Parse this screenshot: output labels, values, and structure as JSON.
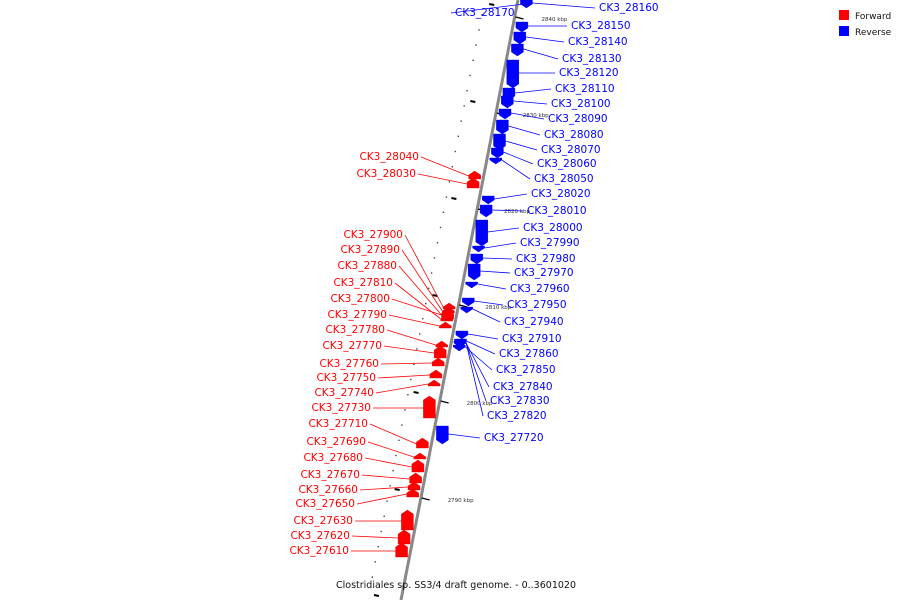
{
  "caption": "Clostridiales sp. SS3/4 draft genome. - 0..3601020",
  "legend": [
    {
      "label": "Forward",
      "color": "#ff0000"
    },
    {
      "label": "Reverse",
      "color": "#0000ff"
    }
  ],
  "strand_colors": {
    "forward": "#ff0000",
    "reverse": "#0000ff"
  },
  "ticks": [
    "2840 kbp",
    "2830 kbp",
    "2820 kbp",
    "2810 kbp",
    "2800 kbp",
    "2790 kbp"
  ],
  "forward_genes": [
    "CK3_28040",
    "CK3_28030",
    "CK3_27900",
    "CK3_27890",
    "CK3_27880",
    "CK3_27810",
    "CK3_27800",
    "CK3_27790",
    "CK3_27780",
    "CK3_27770",
    "CK3_27760",
    "CK3_27750",
    "CK3_27740",
    "CK3_27730",
    "CK3_27710",
    "CK3_27690",
    "CK3_27680",
    "CK3_27670",
    "CK3_27660",
    "CK3_27650",
    "CK3_27630",
    "CK3_27620",
    "CK3_27610"
  ],
  "reverse_genes": [
    "CK3_28170",
    "CK3_28160",
    "CK3_28150",
    "CK3_28140",
    "CK3_28130",
    "CK3_28120",
    "CK3_28110",
    "CK3_28100",
    "CK3_28090",
    "CK3_28080",
    "CK3_28070",
    "CK3_28060",
    "CK3_28050",
    "CK3_28020",
    "CK3_28010",
    "CK3_28000",
    "CK3_27990",
    "CK3_27980",
    "CK3_27970",
    "CK3_27960",
    "CK3_27950",
    "CK3_27940",
    "CK3_27910",
    "CK3_27860",
    "CK3_27850",
    "CK3_27840",
    "CK3_27830",
    "CK3_27820",
    "CK3_27720"
  ]
}
